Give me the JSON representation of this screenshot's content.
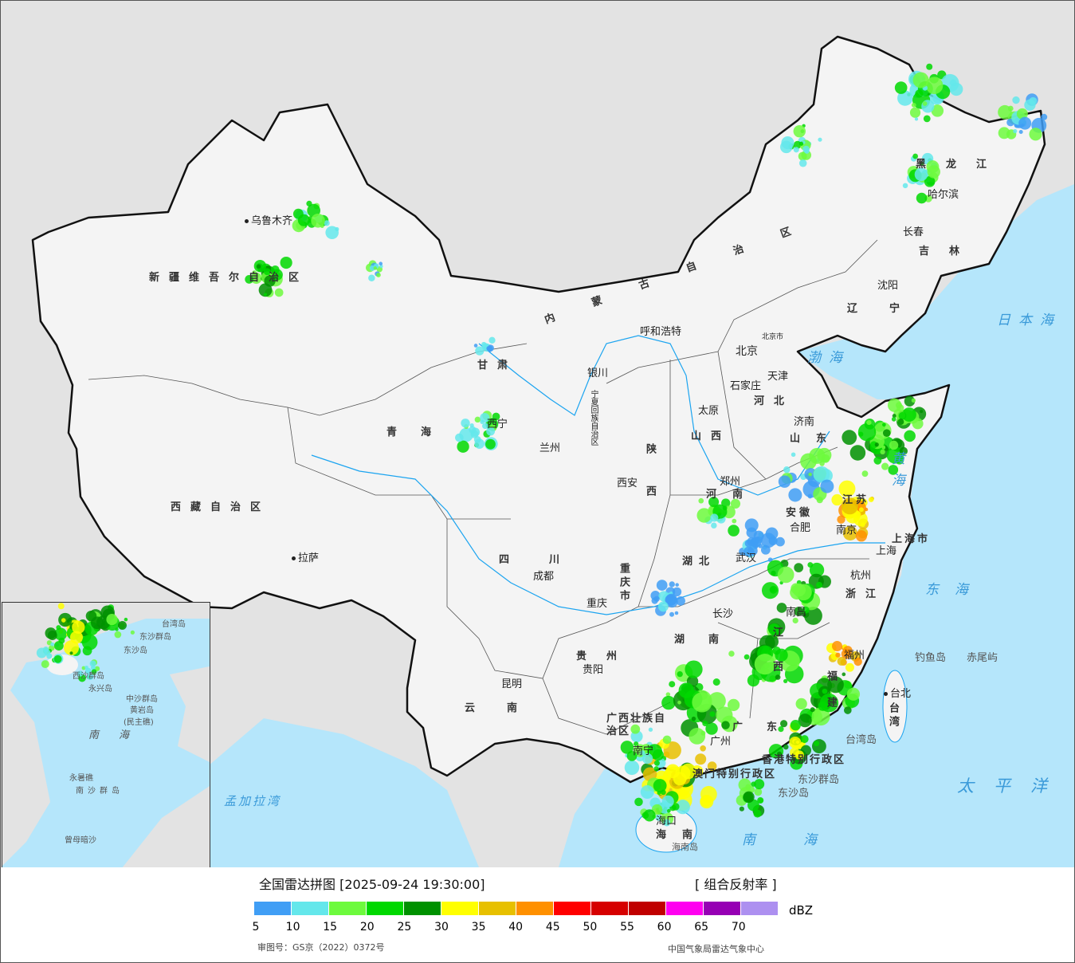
{
  "legend": {
    "title": "全国雷达拼图 [2025-09-24 19:30:00]",
    "product": "[ 组合反射率 ]",
    "unit": "dBZ",
    "ticks": [
      "5",
      "10",
      "15",
      "20",
      "25",
      "30",
      "35",
      "40",
      "45",
      "50",
      "55",
      "60",
      "65",
      "70"
    ],
    "colors": [
      "#409ef5",
      "#64e7eb",
      "#6dfa3d",
      "#00d800",
      "#009100",
      "#ffff00",
      "#e7c000",
      "#ff9000",
      "#ff0000",
      "#d60000",
      "#c00000",
      "#ff00f0",
      "#9600b4",
      "#ad90f0"
    ],
    "approval": "审图号：GS京（2022）0372号",
    "org": "中国气象局雷达气象中心"
  },
  "colors": {
    "sea": "#b5e6fb",
    "land_china": "#f4f4f4",
    "land_other": "#e3e3e3",
    "river": "#1ba4f0",
    "border": "#111111"
  },
  "places": {
    "wulumuqi": "乌鲁木齐",
    "xinjiang": "新疆维吾尔自治区",
    "xizang": "西藏自治区",
    "lasa": "拉萨",
    "qinghai": "青海",
    "xining": "西宁",
    "gansu": "甘肃",
    "lanzhou": "兰州",
    "yinchuan": "银川",
    "ningxia": "宁夏回族自治区",
    "neimenggu": "内蒙古自治区",
    "huhehaote": "呼和浩特",
    "beijing": "北京",
    "beijingshi": "北京市",
    "tianjin": "天津",
    "shijiazhuang": "石家庄",
    "hebei": "河北",
    "shanxi": "山西",
    "taiyuan": "太原",
    "shaanxi": "陕西",
    "xian": "西安",
    "henan": "河南",
    "zhengzhou": "郑州",
    "shandong": "山东",
    "jinan": "济南",
    "jiangsu": "江苏",
    "nanjing": "南京",
    "anhui": "安徽",
    "hefei": "合肥",
    "shanghaishi": "上海市",
    "shanghai": "上海",
    "zhejiang": "浙江",
    "hangzhou": "杭州",
    "hubei": "湖北",
    "wuhan": "武汉",
    "hunan": "湖南",
    "changsha": "长沙",
    "jiangxi": "江西",
    "nanchang": "南昌",
    "fujian": "福建",
    "fuzhou": "福州",
    "sichuan": "四川",
    "chengdu": "成都",
    "chongqingshi": "重庆市",
    "chongqing": "重庆",
    "guizhou": "贵州",
    "guiyang": "贵阳",
    "yunnan": "云南",
    "kunming": "昆明",
    "guangxi": "广西壮族自治区",
    "nanning": "南宁",
    "guangdong": "广东",
    "guangzhou": "广州",
    "xianggang": "香港特别行政区",
    "aomen": "澳门特别行政区",
    "hainan": "海南",
    "haikou": "海口",
    "hainandao": "海南岛",
    "dongsha": "东沙群岛",
    "dongshadao": "东沙岛",
    "taiwandao": "台湾岛",
    "taibei": "台北",
    "taiwan": "台湾",
    "diaoyudao": "钓鱼岛",
    "chiweiyu": "赤尾屿",
    "heilongjiang": "黑龙江",
    "haerbin": "哈尔滨",
    "changchun": "长春",
    "jilin": "吉林",
    "shenyang": "沈阳",
    "liaoning": "辽宁",
    "bohai": "渤海",
    "huanghai": "黄海",
    "donghai": "东海",
    "ribenhai": "日本海",
    "taipingyang": "太平洋",
    "nanhai": "南海",
    "mengjialawan": "孟加拉湾"
  },
  "inset": {
    "nanhai": "南海",
    "xisha": "西沙群岛",
    "yongxing": "永兴岛",
    "zhongsha": "中沙群岛",
    "huangyan": "黄岩岛",
    "minzhu": "(民主礁)",
    "yongshu": "永暑礁",
    "nansha": "南沙群岛",
    "zengmu": "曾母暗沙",
    "dongsha": "东沙群岛",
    "dongshadao": "东沙岛",
    "taiwandao": "台湾岛"
  }
}
